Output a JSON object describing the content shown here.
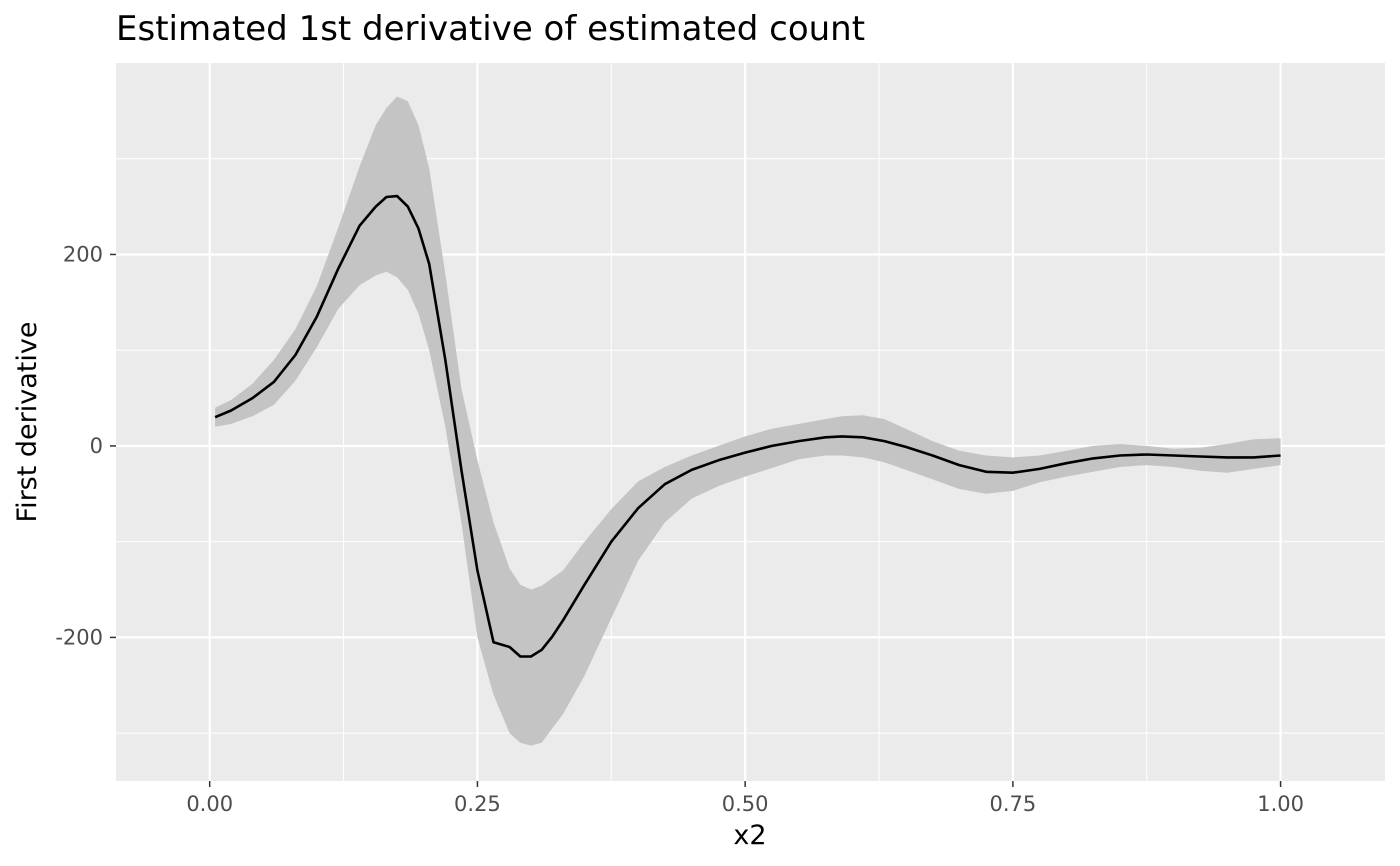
{
  "chart_data": {
    "type": "line",
    "title": "Estimated 1st derivative of estimated count",
    "xlabel": "x2",
    "ylabel": "First derivative",
    "xlim": [
      -0.0875,
      1.0975
    ],
    "ylim": [
      -350,
      400
    ],
    "x_ticks": [
      0.0,
      0.25,
      0.5,
      0.75,
      1.0
    ],
    "x_tick_labels": [
      "0.00",
      "0.25",
      "0.50",
      "0.75",
      "1.00"
    ],
    "y_ticks": [
      -200,
      0,
      200
    ],
    "y_tick_labels": [
      "-200",
      "0",
      "200"
    ],
    "x_minor": [
      0.125,
      0.375,
      0.625,
      0.875
    ],
    "y_minor": [
      -300,
      -100,
      100,
      300
    ],
    "grid": true,
    "colors": {
      "panel": "#ebebeb",
      "grid": "#ffffff",
      "line": "#000000",
      "ribbon": "#c4c4c4"
    },
    "series": [
      {
        "x": [
          0.005,
          0.02,
          0.04,
          0.06,
          0.08,
          0.1,
          0.12,
          0.14,
          0.155,
          0.165,
          0.175,
          0.185,
          0.195,
          0.205,
          0.22,
          0.235,
          0.25,
          0.265,
          0.28,
          0.29,
          0.3,
          0.31,
          0.32,
          0.33,
          0.35,
          0.375,
          0.4,
          0.425,
          0.45,
          0.475,
          0.5,
          0.525,
          0.55,
          0.575,
          0.59,
          0.61,
          0.63,
          0.65,
          0.675,
          0.7,
          0.725,
          0.75,
          0.775,
          0.8,
          0.825,
          0.85,
          0.875,
          0.9,
          0.925,
          0.95,
          0.975,
          1.0
        ],
        "y": [
          30,
          37,
          50,
          67,
          95,
          135,
          185,
          230,
          250,
          260,
          261,
          250,
          227,
          190,
          90,
          -25,
          -130,
          -205,
          -210,
          -220,
          -220,
          -213,
          -199,
          -182,
          -145,
          -100,
          -65,
          -40,
          -25,
          -15,
          -7,
          0,
          5,
          9,
          10,
          9,
          5,
          -1,
          -10,
          -20,
          -27,
          -28,
          -24,
          -18,
          -13,
          -10,
          -9,
          -10,
          -11,
          -12,
          -12,
          -10
        ],
        "lower": [
          20,
          23,
          31,
          43,
          68,
          103,
          143,
          168,
          178,
          182,
          176,
          163,
          138,
          100,
          20,
          -80,
          -200,
          -260,
          -300,
          -310,
          -313,
          -310,
          -295,
          -280,
          -240,
          -180,
          -120,
          -80,
          -55,
          -42,
          -32,
          -23,
          -14,
          -10,
          -10,
          -12,
          -17,
          -25,
          -35,
          -45,
          -50,
          -47,
          -38,
          -32,
          -27,
          -22,
          -20,
          -22,
          -26,
          -28,
          -24,
          -20
        ],
        "upper": [
          40,
          48,
          65,
          90,
          122,
          167,
          228,
          292,
          335,
          353,
          365,
          360,
          335,
          290,
          180,
          60,
          -15,
          -80,
          -128,
          -145,
          -150,
          -146,
          -138,
          -130,
          -100,
          -66,
          -37,
          -22,
          -10,
          0,
          10,
          18,
          23,
          28,
          31,
          32,
          28,
          18,
          5,
          -5,
          -10,
          -12,
          -10,
          -5,
          0,
          2,
          0,
          -3,
          -2,
          2,
          7,
          8
        ]
      }
    ]
  }
}
